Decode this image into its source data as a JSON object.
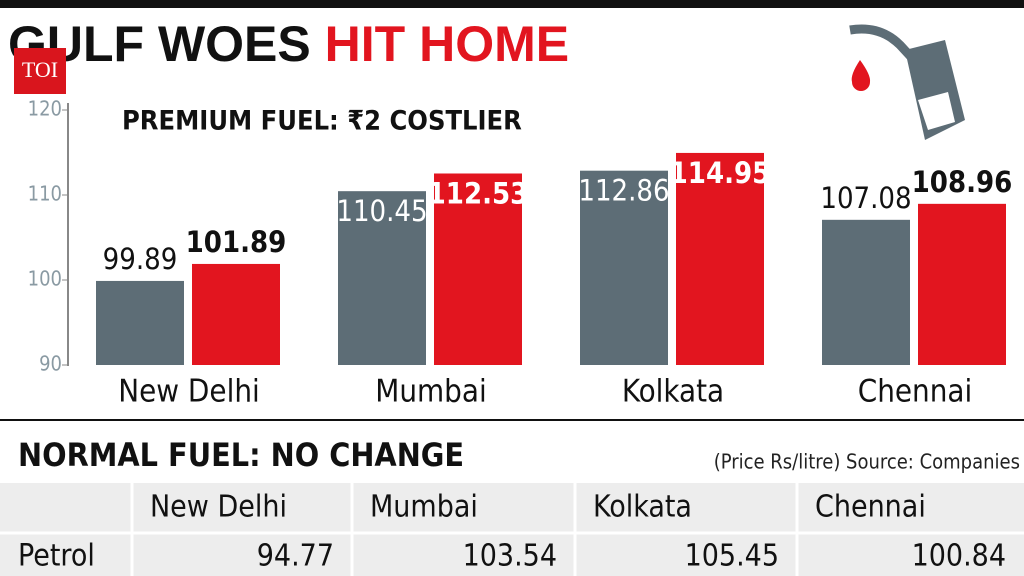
{
  "header": {
    "title_black": "GULF WOES",
    "title_red": "HIT HOME",
    "logo": "TOI"
  },
  "chart_data": {
    "type": "bar",
    "title": "PREMIUM FUEL: ₹2 COSTLIER",
    "categories": [
      "New Delhi",
      "Mumbai",
      "Kolkata",
      "Chennai"
    ],
    "series": [
      {
        "color": "#5d6d76",
        "values": [
          99.89,
          110.45,
          112.86,
          107.08
        ]
      },
      {
        "color": "#e2151f",
        "values": [
          101.89,
          112.53,
          114.95,
          108.96
        ]
      }
    ],
    "ylim": [
      90,
      120
    ],
    "yticks": [
      90,
      100,
      110,
      120
    ]
  },
  "table": {
    "title": "NORMAL FUEL: NO CHANGE",
    "note": "(Price Rs/litre) Source: Companies",
    "columns": [
      "New Delhi",
      "Mumbai",
      "Kolkata",
      "Chennai"
    ],
    "rows": [
      {
        "label": "Petrol",
        "values": [
          94.77,
          103.54,
          105.45,
          100.84
        ]
      }
    ]
  }
}
